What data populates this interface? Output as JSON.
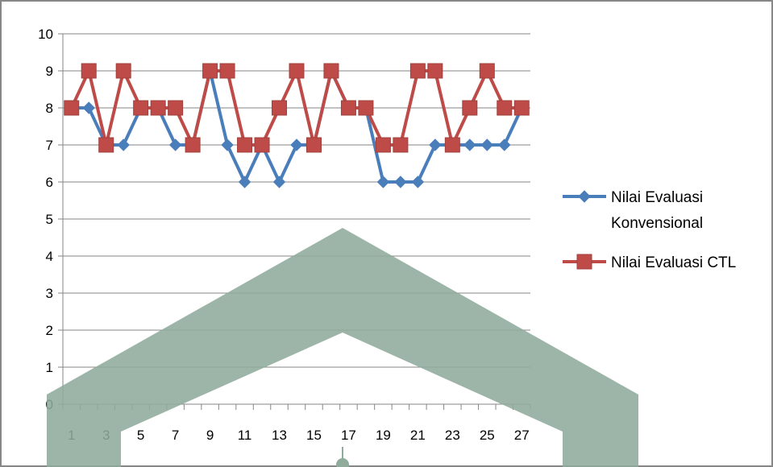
{
  "chart_data": {
    "type": "line",
    "title": "",
    "xlabel": "",
    "ylabel": "",
    "ylim": [
      0,
      10
    ],
    "y_ticks": [
      0,
      1,
      2,
      3,
      4,
      5,
      6,
      7,
      8,
      9,
      10
    ],
    "x_tick_labels": [
      "1",
      "3",
      "5",
      "7",
      "9",
      "11",
      "13",
      "15",
      "17",
      "19",
      "21",
      "23",
      "25",
      "27"
    ],
    "x": [
      1,
      2,
      3,
      4,
      5,
      6,
      7,
      8,
      9,
      10,
      11,
      12,
      13,
      14,
      15,
      16,
      17,
      18,
      19,
      20,
      21,
      22,
      23,
      24,
      25,
      26,
      27
    ],
    "grid": true,
    "legend_position": "right",
    "series": [
      {
        "name": "Nilai Evaluasi Konvensional",
        "legend_lines": [
          "Nilai Evaluasi",
          "Konvensional"
        ],
        "color": "#4a7ebb",
        "marker": "diamond",
        "values": [
          8,
          8,
          7,
          7,
          8,
          8,
          7,
          7,
          9,
          7,
          6,
          7,
          6,
          7,
          7,
          9,
          8,
          8,
          6,
          6,
          6,
          7,
          7,
          7,
          7,
          7,
          8
        ]
      },
      {
        "name": "Nilai Evaluasi CTL",
        "legend_lines": [
          "Nilai Evaluasi CTL"
        ],
        "color": "#be4b48",
        "marker": "square",
        "values": [
          8,
          9,
          7,
          9,
          8,
          8,
          8,
          7,
          9,
          9,
          7,
          7,
          8,
          9,
          7,
          9,
          8,
          8,
          7,
          7,
          9,
          9,
          7,
          8,
          9,
          8,
          8
        ]
      }
    ]
  },
  "watermark": {
    "color": "#8fab9c"
  }
}
